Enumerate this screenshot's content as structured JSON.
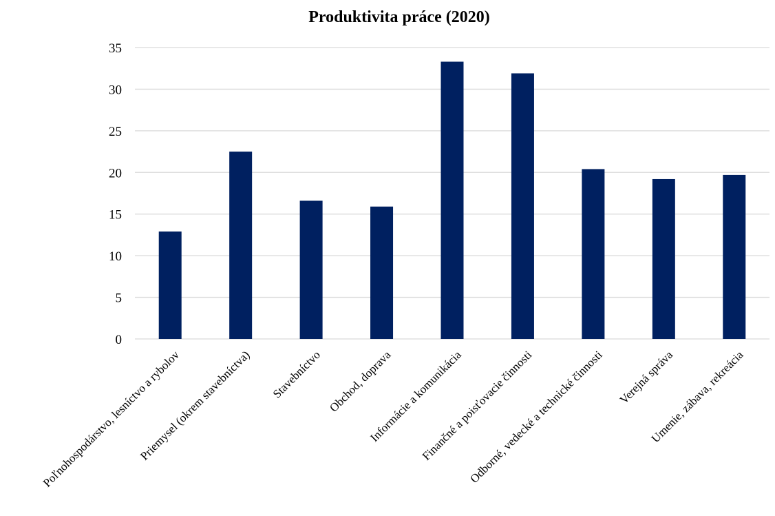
{
  "chart_data": {
    "type": "bar",
    "title": "Produktivita práce (2020)",
    "xlabel": "",
    "ylabel": "",
    "categories": [
      "Poľnohospodárstvo, lesníctvo a rybolov",
      "Priemysel (okrem stavebníctva)",
      "Stavebníctvo",
      "Obchod, doprava",
      "Informácie a komunikácia",
      "Finančné a poisťovacie činnosti",
      "Odborné, vedecké a technické činnosti",
      "Verejná správa",
      "Umenie, zábava, rekreácia"
    ],
    "values": [
      12.9,
      22.5,
      16.6,
      15.9,
      33.3,
      31.9,
      20.4,
      19.2,
      19.7
    ],
    "ylim": [
      0,
      35
    ],
    "yticks": [
      "0",
      "5",
      "10",
      "15",
      "20",
      "25",
      "30",
      "35"
    ],
    "grid": true,
    "legend": "none",
    "bar_color": "#002060"
  }
}
